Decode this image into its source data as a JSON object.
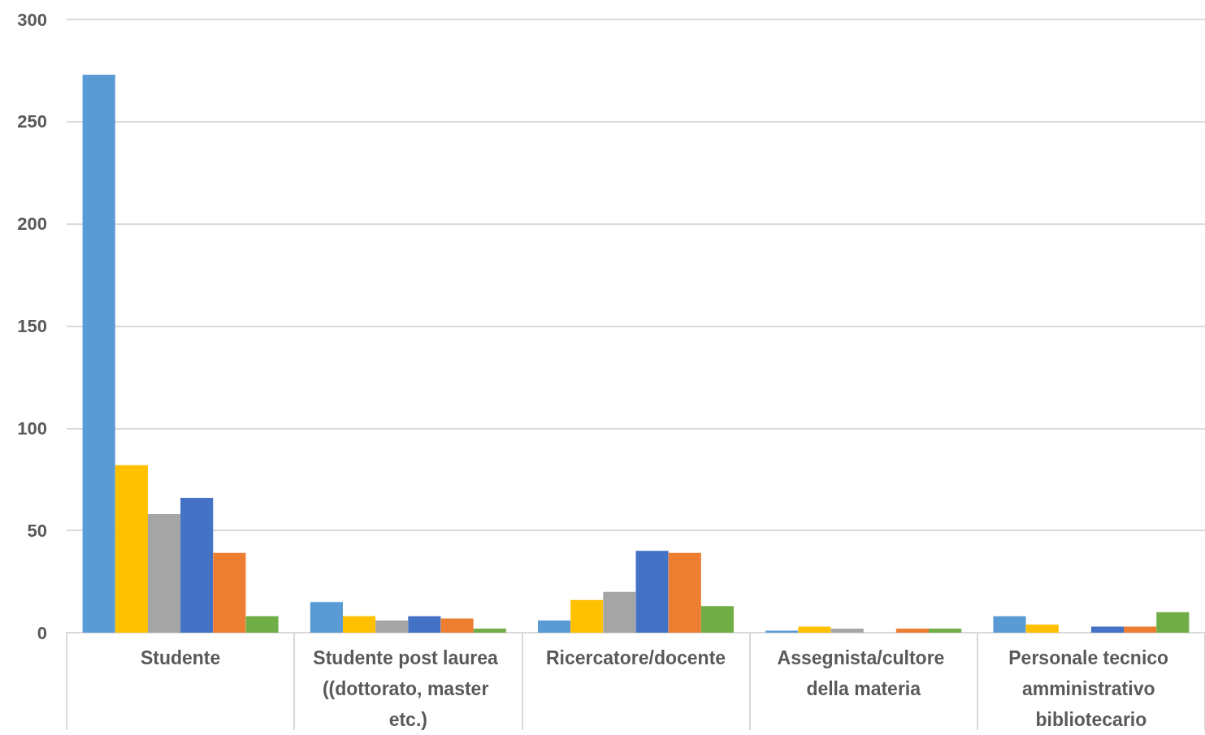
{
  "chart_data": {
    "type": "bar",
    "categories": [
      "Studente",
      "Studente post laurea ((dottorato, master etc.)",
      "Ricercatore/docente",
      "Assegnista/cultore della materia",
      "Personale tecnico amministrativo bibliotecario"
    ],
    "series": [
      {
        "color": "#5b9bd5",
        "values": [
          273,
          15,
          6,
          1,
          8
        ]
      },
      {
        "color": "#ffc000",
        "values": [
          82,
          8,
          16,
          3,
          4
        ]
      },
      {
        "color": "#a5a5a5",
        "values": [
          58,
          6,
          20,
          2,
          0
        ]
      },
      {
        "color": "#4472c4",
        "values": [
          66,
          8,
          40,
          0,
          3
        ]
      },
      {
        "color": "#ed7d31",
        "values": [
          39,
          7,
          39,
          2,
          3
        ]
      },
      {
        "color": "#70ad47",
        "values": [
          8,
          2,
          13,
          2,
          10
        ]
      }
    ],
    "ylim": [
      0,
      300
    ],
    "yticks": [
      0,
      50,
      100,
      150,
      200,
      250,
      300
    ],
    "grid": "y"
  }
}
